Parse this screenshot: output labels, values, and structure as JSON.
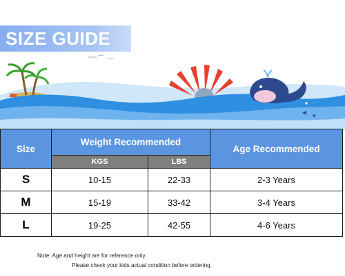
{
  "banner": {
    "title": "SIZE GUIDE"
  },
  "table": {
    "size_header": "Size",
    "weight_header": "Weight Recommended",
    "age_header": "Age Recommended",
    "kgs_header": "KGS",
    "lbs_header": "LBS",
    "rows": [
      {
        "size": "S",
        "kgs": "10-15",
        "lbs": "22-33",
        "age": "2-3 Years"
      },
      {
        "size": "M",
        "kgs": "15-19",
        "lbs": "33-42",
        "age": "3-4 Years"
      },
      {
        "size": "L",
        "kgs": "19-25",
        "lbs": "42-55",
        "age": "4-6 Years"
      }
    ]
  },
  "notes": {
    "line1": "Note: Age and height are for reference only.",
    "line2": "Please check your kids actual condition before ordering."
  },
  "colors": {
    "header_blue": "#5b95df",
    "subheader_gray": "#7f7f7f",
    "banner_blue": "#86aef0",
    "sea_blue": "#2f8fe0"
  }
}
